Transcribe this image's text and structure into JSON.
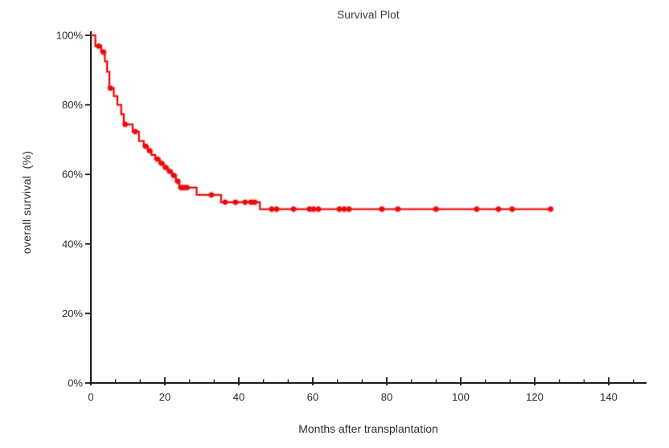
{
  "page": {
    "background": "#ffffff"
  },
  "chart_data": {
    "type": "line",
    "variant": "kaplan-meier-step-survival",
    "title": "Survival Plot",
    "xlabel": "Months after transplantation",
    "ylabel": "overall survival  (%)",
    "xlim": [
      0,
      150
    ],
    "ylim": [
      0,
      100
    ],
    "x_major_ticks": [
      0,
      20,
      40,
      60,
      80,
      100,
      120,
      140
    ],
    "x_minor_tick_step": 6.667,
    "y_major_ticks": [
      0,
      20,
      40,
      60,
      80,
      100
    ],
    "y_tick_suffix": "%",
    "grid": false,
    "legend": false,
    "axis_color": "#1b1b1b",
    "line_color": "#ee1111",
    "marker_color": "#ea0d0d",
    "curve_end_month": 124.3,
    "survival_steps": [
      [
        0,
        100
      ],
      [
        1.2,
        96.9
      ],
      [
        2.8,
        95.2
      ],
      [
        3.8,
        92.5
      ],
      [
        4.4,
        89.5
      ],
      [
        5.0,
        84.8
      ],
      [
        6.2,
        82.5
      ],
      [
        7.2,
        80.0
      ],
      [
        8.2,
        77.3
      ],
      [
        8.9,
        74.4
      ],
      [
        11.3,
        72.3
      ],
      [
        13.0,
        69.6
      ],
      [
        14.3,
        68.1
      ],
      [
        15.4,
        66.8
      ],
      [
        16.4,
        65.6
      ],
      [
        17.4,
        64.4
      ],
      [
        18.6,
        63.2
      ],
      [
        19.7,
        62.0
      ],
      [
        20.8,
        60.9
      ],
      [
        21.9,
        59.7
      ],
      [
        23.0,
        58.0
      ],
      [
        23.9,
        56.2
      ],
      [
        28.6,
        54.1
      ],
      [
        35.2,
        52.0
      ],
      [
        45.7,
        50.0
      ]
    ],
    "censor_marks": [
      [
        2.1,
        96.9
      ],
      [
        3.4,
        95.2
      ],
      [
        5.3,
        84.8
      ],
      [
        9.3,
        74.4
      ],
      [
        12.0,
        72.3
      ],
      [
        14.8,
        68.1
      ],
      [
        15.9,
        66.8
      ],
      [
        18.0,
        64.4
      ],
      [
        19.1,
        63.2
      ],
      [
        20.2,
        62.0
      ],
      [
        21.3,
        60.9
      ],
      [
        22.4,
        59.7
      ],
      [
        23.5,
        58.0
      ],
      [
        24.4,
        56.2
      ],
      [
        25.2,
        56.2
      ],
      [
        26.0,
        56.2
      ],
      [
        32.6,
        54.1
      ],
      [
        36.3,
        52.0
      ],
      [
        39.1,
        52.0
      ],
      [
        41.7,
        52.0
      ],
      [
        43.3,
        52.0
      ],
      [
        44.3,
        52.0
      ],
      [
        48.9,
        50.0
      ],
      [
        50.2,
        50.0
      ],
      [
        54.8,
        50.0
      ],
      [
        59.1,
        50.0
      ],
      [
        60.2,
        50.0
      ],
      [
        61.5,
        50.0
      ],
      [
        67.2,
        50.0
      ],
      [
        68.5,
        50.0
      ],
      [
        69.8,
        50.0
      ],
      [
        78.7,
        50.0
      ],
      [
        83.0,
        50.0
      ],
      [
        93.3,
        50.0
      ],
      [
        104.3,
        50.0
      ],
      [
        110.2,
        50.0
      ],
      [
        113.9,
        50.0
      ],
      [
        124.3,
        50.0
      ]
    ]
  }
}
